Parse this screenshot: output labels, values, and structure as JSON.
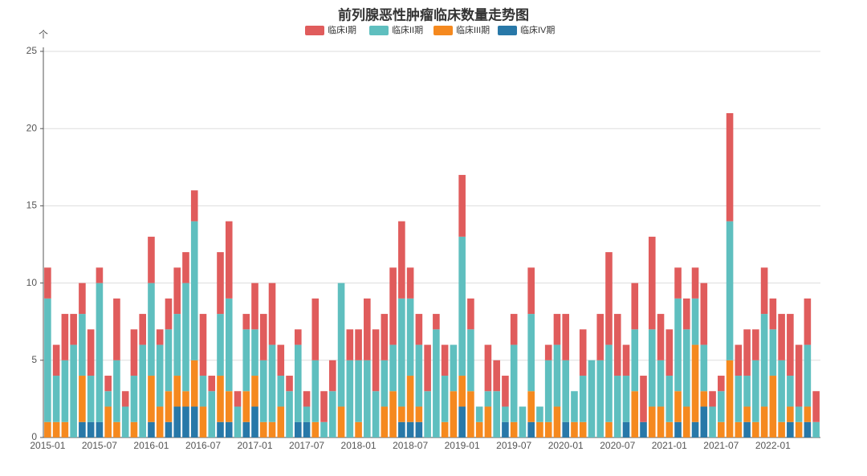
{
  "chart_data": {
    "type": "stacked_bar",
    "title": "前列腺恶性肿瘤临床数量走势图",
    "y_unit": "个",
    "categories": [
      "2015-01",
      null,
      null,
      null,
      null,
      null,
      "2015-07",
      null,
      null,
      null,
      null,
      null,
      "2016-01",
      null,
      null,
      null,
      null,
      null,
      "2016-07",
      null,
      null,
      null,
      null,
      null,
      "2017-01",
      null,
      null,
      null,
      null,
      null,
      "2017-07",
      null,
      null,
      null,
      null,
      null,
      "2018-01",
      null,
      null,
      null,
      null,
      null,
      "2018-07",
      null,
      null,
      null,
      null,
      null,
      "2019-01",
      null,
      null,
      null,
      null,
      null,
      "2019-07",
      null,
      null,
      null,
      null,
      null,
      "2020-01",
      null,
      null,
      null,
      null,
      null,
      "2020-07",
      null,
      null,
      null,
      null,
      null,
      "2021-01",
      null,
      null,
      null,
      null,
      null,
      "2021-07",
      null,
      null,
      null,
      null,
      null,
      "2022-01",
      null,
      null,
      null,
      null,
      null
    ],
    "series": [
      {
        "name": "临床I期",
        "color": "#e05c5c",
        "values": [
          2,
          2,
          3,
          2,
          2,
          3,
          1,
          1,
          4,
          1,
          3,
          2,
          3,
          1,
          2,
          3,
          2,
          2,
          4,
          1,
          4,
          5,
          1,
          1,
          3,
          3,
          4,
          2,
          1,
          1,
          1,
          4,
          2,
          2,
          0,
          2,
          2,
          4,
          4,
          3,
          5,
          5,
          2,
          2,
          3,
          1,
          2,
          0,
          4,
          2,
          0,
          3,
          2,
          2,
          2,
          0,
          3,
          0,
          1,
          2,
          3,
          0,
          3,
          0,
          3,
          6,
          4,
          2,
          3,
          3,
          6,
          3,
          3,
          2,
          2,
          2,
          4,
          1,
          1,
          7,
          2,
          3,
          2,
          3,
          2,
          3,
          4,
          4,
          3,
          2
        ]
      },
      {
        "name": "临床II期",
        "color": "#5fbfbf",
        "values": [
          8,
          3,
          4,
          6,
          4,
          3,
          9,
          1,
          4,
          2,
          3,
          6,
          6,
          4,
          4,
          4,
          7,
          9,
          2,
          3,
          4,
          6,
          2,
          4,
          3,
          4,
          5,
          2,
          3,
          5,
          1,
          4,
          1,
          3,
          8,
          5,
          4,
          5,
          3,
          3,
          3,
          7,
          5,
          4,
          3,
          7,
          3,
          3,
          9,
          4,
          1,
          1,
          3,
          1,
          5,
          2,
          5,
          1,
          4,
          4,
          4,
          2,
          3,
          5,
          5,
          5,
          4,
          3,
          4,
          0,
          5,
          3,
          3,
          6,
          5,
          3,
          3,
          2,
          2,
          9,
          3,
          2,
          4,
          6,
          3,
          4,
          2,
          1,
          4,
          1
        ]
      },
      {
        "name": "临床III期",
        "color": "#f5891f",
        "values": [
          1,
          1,
          1,
          0,
          3,
          0,
          0,
          2,
          1,
          0,
          1,
          0,
          3,
          2,
          2,
          2,
          1,
          3,
          2,
          0,
          3,
          2,
          0,
          2,
          2,
          1,
          1,
          2,
          0,
          0,
          0,
          1,
          0,
          0,
          2,
          0,
          1,
          0,
          0,
          2,
          3,
          1,
          3,
          1,
          0,
          0,
          1,
          3,
          2,
          3,
          1,
          2,
          0,
          0,
          1,
          0,
          2,
          1,
          1,
          2,
          0,
          1,
          1,
          0,
          0,
          1,
          0,
          0,
          3,
          0,
          2,
          2,
          1,
          2,
          2,
          5,
          1,
          0,
          1,
          5,
          1,
          1,
          1,
          2,
          4,
          1,
          1,
          1,
          1,
          0
        ]
      },
      {
        "name": "临床IV期",
        "color": "#2878a8",
        "values": [
          0,
          0,
          0,
          0,
          1,
          1,
          1,
          0,
          0,
          0,
          0,
          0,
          1,
          0,
          1,
          2,
          2,
          2,
          0,
          0,
          1,
          1,
          0,
          1,
          2,
          0,
          0,
          0,
          0,
          1,
          1,
          0,
          0,
          0,
          0,
          0,
          0,
          0,
          0,
          0,
          0,
          1,
          1,
          1,
          0,
          0,
          0,
          0,
          2,
          0,
          0,
          0,
          0,
          1,
          0,
          0,
          1,
          0,
          0,
          0,
          1,
          0,
          0,
          0,
          0,
          0,
          0,
          1,
          0,
          1,
          0,
          0,
          0,
          1,
          0,
          1,
          2,
          0,
          0,
          0,
          0,
          1,
          0,
          0,
          0,
          0,
          1,
          0,
          1,
          0
        ]
      }
    ],
    "ylim": [
      0,
      25
    ],
    "yticks": [
      0,
      5,
      10,
      15,
      20,
      25
    ],
    "grid": true
  }
}
